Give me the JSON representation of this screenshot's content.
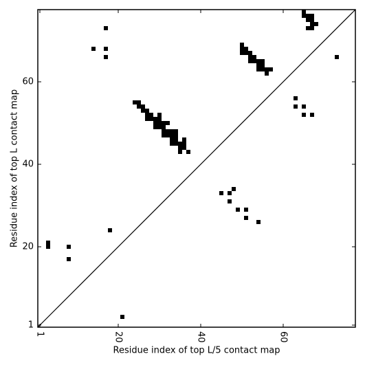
{
  "chart_data": {
    "type": "scatter",
    "xlabel": "Residue index of top L/5 contact map",
    "ylabel": "Residue index of top L contact map",
    "xlim": [
      0.5,
      77.5
    ],
    "ylim": [
      0.5,
      77.5
    ],
    "xticks": [
      1,
      20,
      40,
      60
    ],
    "yticks": [
      1,
      20,
      40,
      60
    ],
    "series": [
      {
        "color": "#000000",
        "x": [
          17,
          14,
          17,
          17,
          73,
          3,
          3,
          8,
          8,
          18,
          21,
          63,
          63,
          65,
          65,
          67,
          45,
          47,
          48,
          47,
          49,
          51,
          51,
          54,
          65,
          65,
          66,
          67,
          66,
          67,
          66,
          67,
          67,
          68,
          50,
          50,
          51,
          50,
          51,
          52,
          52,
          53,
          52,
          53,
          54,
          55,
          54,
          55,
          54,
          55,
          56,
          57,
          56,
          24,
          25,
          25,
          26,
          26,
          27,
          27,
          28,
          30,
          27,
          28,
          29,
          30,
          29,
          30,
          31,
          32,
          29,
          30,
          31,
          31,
          32,
          33,
          34,
          31,
          32,
          33,
          34,
          33,
          34,
          36,
          33,
          34,
          35,
          36,
          35,
          36,
          35,
          37
        ],
        "y": [
          73,
          68,
          68,
          66,
          66,
          21,
          20,
          20,
          17,
          24,
          3,
          56,
          54,
          54,
          52,
          52,
          33,
          33,
          34,
          31,
          29,
          29,
          27,
          26,
          77,
          76,
          76,
          76,
          75,
          75,
          73,
          73,
          74,
          74,
          69,
          68,
          68,
          67,
          67,
          67,
          66,
          66,
          65,
          65,
          65,
          65,
          64,
          64,
          63,
          63,
          63,
          63,
          62,
          55,
          55,
          54,
          54,
          53,
          53,
          52,
          52,
          52,
          51,
          51,
          51,
          51,
          50,
          50,
          50,
          50,
          49,
          49,
          49,
          48,
          48,
          48,
          48,
          47,
          47,
          47,
          47,
          46,
          46,
          46,
          45,
          45,
          45,
          45,
          44,
          44,
          43,
          43
        ]
      }
    ]
  }
}
